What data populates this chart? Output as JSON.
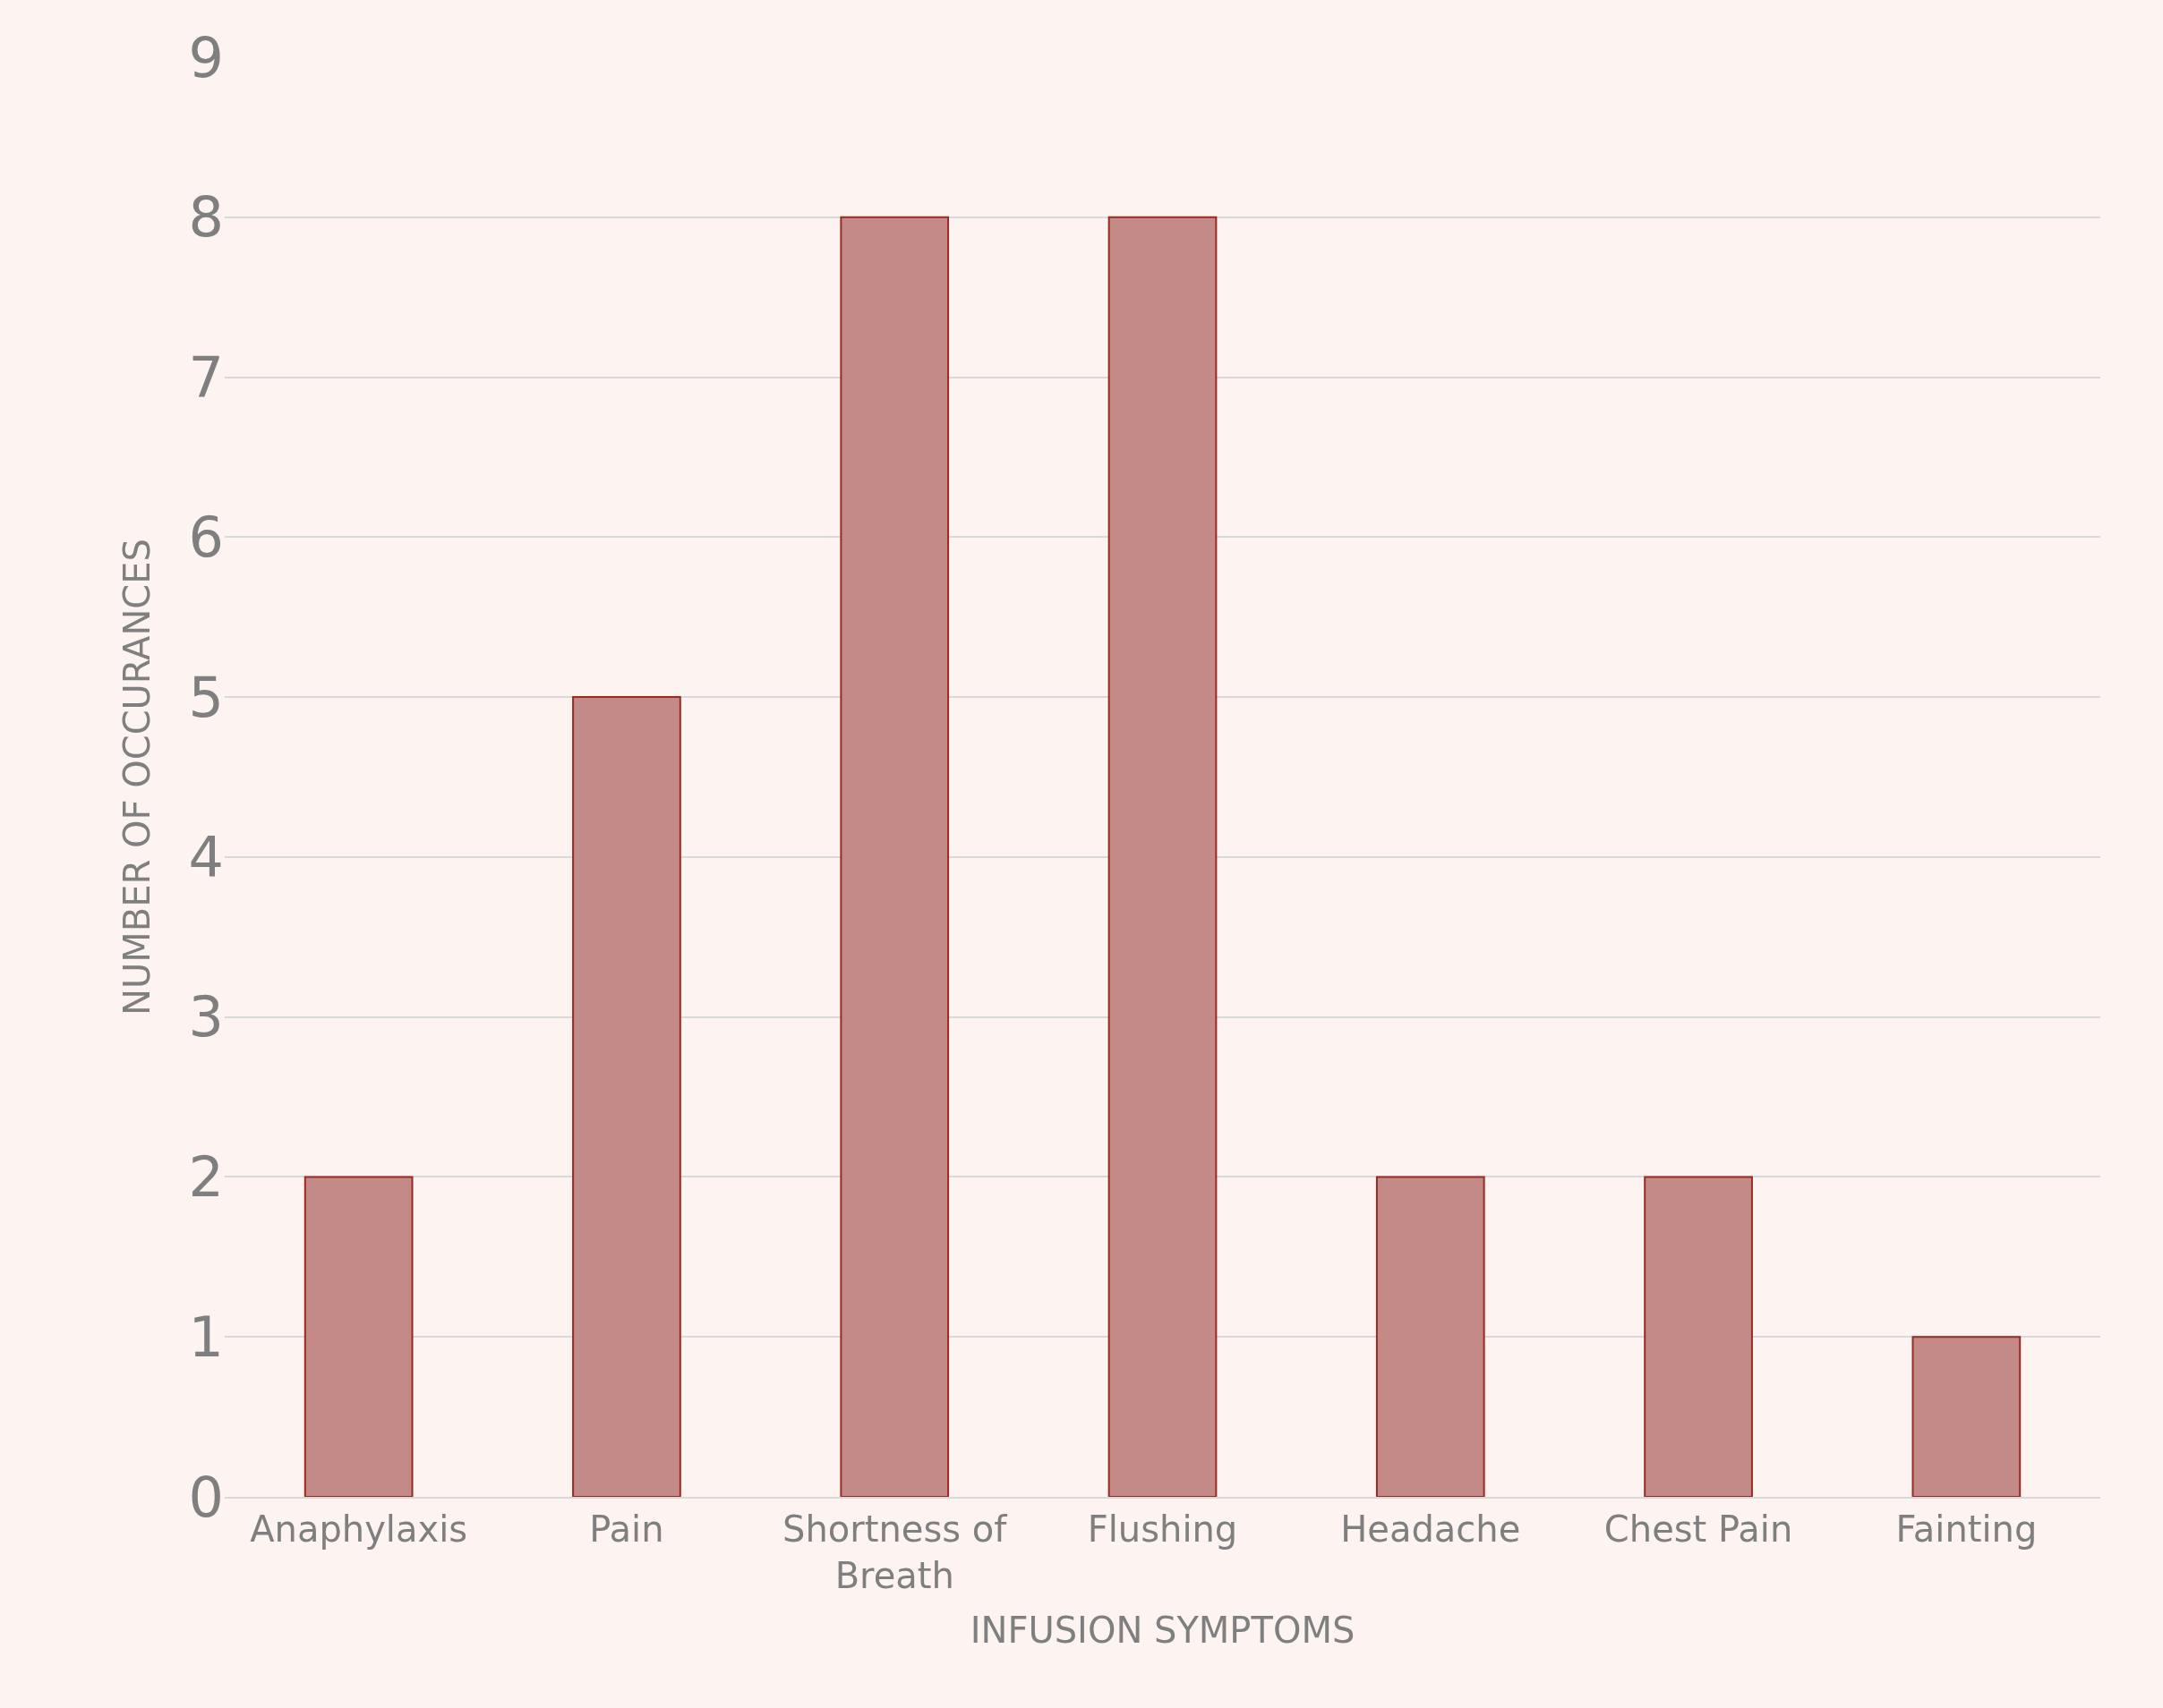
{
  "chart_data": {
    "type": "bar",
    "xlabel": "INFUSION SYMPTOMS",
    "ylabel": "NUMBER OF OCCURANCES",
    "categories": [
      "Anaphylaxis",
      "Pain",
      "Shortness of Breath",
      "Flushing",
      "Headache",
      "Chest Pain",
      "Fainting"
    ],
    "values": [
      2,
      5,
      8,
      8,
      2,
      2,
      1
    ],
    "color": "#c48a88",
    "ylim": [
      0,
      9
    ],
    "yticks": [
      0,
      1,
      2,
      3,
      4,
      5,
      6,
      7,
      8,
      9
    ],
    "grid": "y"
  }
}
